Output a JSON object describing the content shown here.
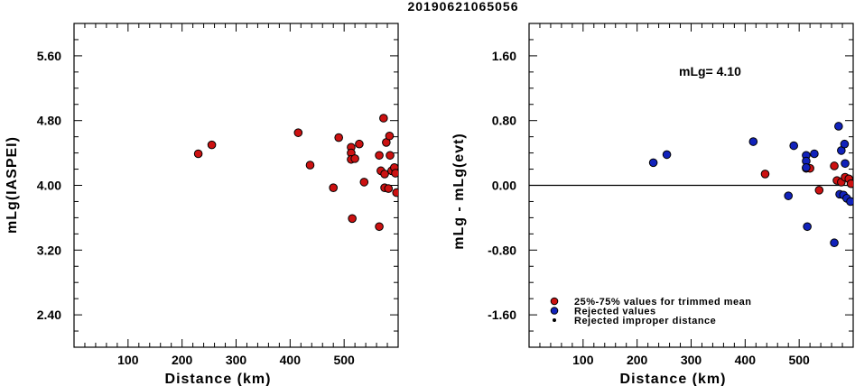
{
  "figure_title": "20190621065056",
  "colors": {
    "accepted": "#cc1111",
    "rejected": "#1122bb",
    "improper": "#000000"
  },
  "chart_data": [
    {
      "type": "scatter",
      "xlabel": "Distance (km)",
      "ylabel": "mLg(IASPEI)",
      "xlim": [
        0,
        600
      ],
      "ylim": [
        2.0,
        6.0
      ],
      "xticks": [
        100,
        200,
        300,
        400,
        500
      ],
      "yticks": [
        "2.40",
        "3.20",
        "4.00",
        "4.80",
        "5.60"
      ],
      "grid": false,
      "series": [
        {
          "color": "#cc1111",
          "points": [
            [
              230,
              4.39
            ],
            [
              255,
              4.5
            ],
            [
              415,
              4.65
            ],
            [
              437,
              4.25
            ],
            [
              480,
              3.97
            ],
            [
              490,
              4.59
            ],
            [
              513,
              4.47
            ],
            [
              513,
              4.4
            ],
            [
              513,
              4.32
            ],
            [
              515,
              3.59
            ],
            [
              520,
              4.33
            ],
            [
              528,
              4.51
            ],
            [
              537,
              4.04
            ],
            [
              565,
              3.49
            ],
            [
              565,
              4.37
            ],
            [
              568,
              4.18
            ],
            [
              573,
              4.83
            ],
            [
              575,
              4.14
            ],
            [
              575,
              3.97
            ],
            [
              578,
              4.53
            ],
            [
              582,
              3.96
            ],
            [
              584,
              4.61
            ],
            [
              585,
              4.37
            ],
            [
              588,
              4.18
            ],
            [
              593,
              4.22
            ],
            [
              595,
              4.15
            ],
            [
              597,
              3.91
            ]
          ]
        }
      ]
    },
    {
      "type": "scatter",
      "xlabel": "Distance (km)",
      "ylabel": "mLg - mLg(evt)",
      "xlim": [
        0,
        600
      ],
      "ylim": [
        -2.0,
        2.0
      ],
      "xticks": [
        100,
        200,
        300,
        400,
        500
      ],
      "yticks": [
        "-1.60",
        "-0.80",
        "0.00",
        "0.80",
        "1.60"
      ],
      "grid": false,
      "reference_line": 0.0,
      "annotation": "mLg= 4.10",
      "legend": {
        "position": "bottom-left",
        "entries": [
          {
            "label": "25%-75% values for trimmed mean",
            "color": "#cc1111"
          },
          {
            "label": "Rejected values",
            "color": "#1122bb"
          },
          {
            "label": "Rejected improper distance",
            "color": "#000000"
          }
        ]
      },
      "series": [
        {
          "label": "25%-75% values for trimmed mean",
          "color": "#cc1111",
          "points": [
            [
              437,
              0.14
            ],
            [
              513,
              0.21
            ],
            [
              520,
              0.21
            ],
            [
              537,
              -0.06
            ],
            [
              565,
              0.24
            ],
            [
              570,
              0.06
            ],
            [
              578,
              0.04
            ],
            [
              585,
              0.1
            ],
            [
              592,
              0.08
            ],
            [
              596,
              0.02
            ]
          ]
        },
        {
          "label": "Rejected values",
          "color": "#1122bb",
          "points": [
            [
              230,
              0.28
            ],
            [
              255,
              0.38
            ],
            [
              415,
              0.54
            ],
            [
              480,
              -0.13
            ],
            [
              490,
              0.49
            ],
            [
              513,
              0.37
            ],
            [
              513,
              0.3
            ],
            [
              513,
              0.22
            ],
            [
              515,
              -0.51
            ],
            [
              528,
              0.39
            ],
            [
              565,
              -0.71
            ],
            [
              573,
              0.73
            ],
            [
              575,
              -0.11
            ],
            [
              578,
              0.43
            ],
            [
              582,
              -0.12
            ],
            [
              584,
              0.51
            ],
            [
              585,
              0.27
            ],
            [
              588,
              -0.16
            ],
            [
              595,
              -0.2
            ]
          ]
        }
      ]
    }
  ]
}
